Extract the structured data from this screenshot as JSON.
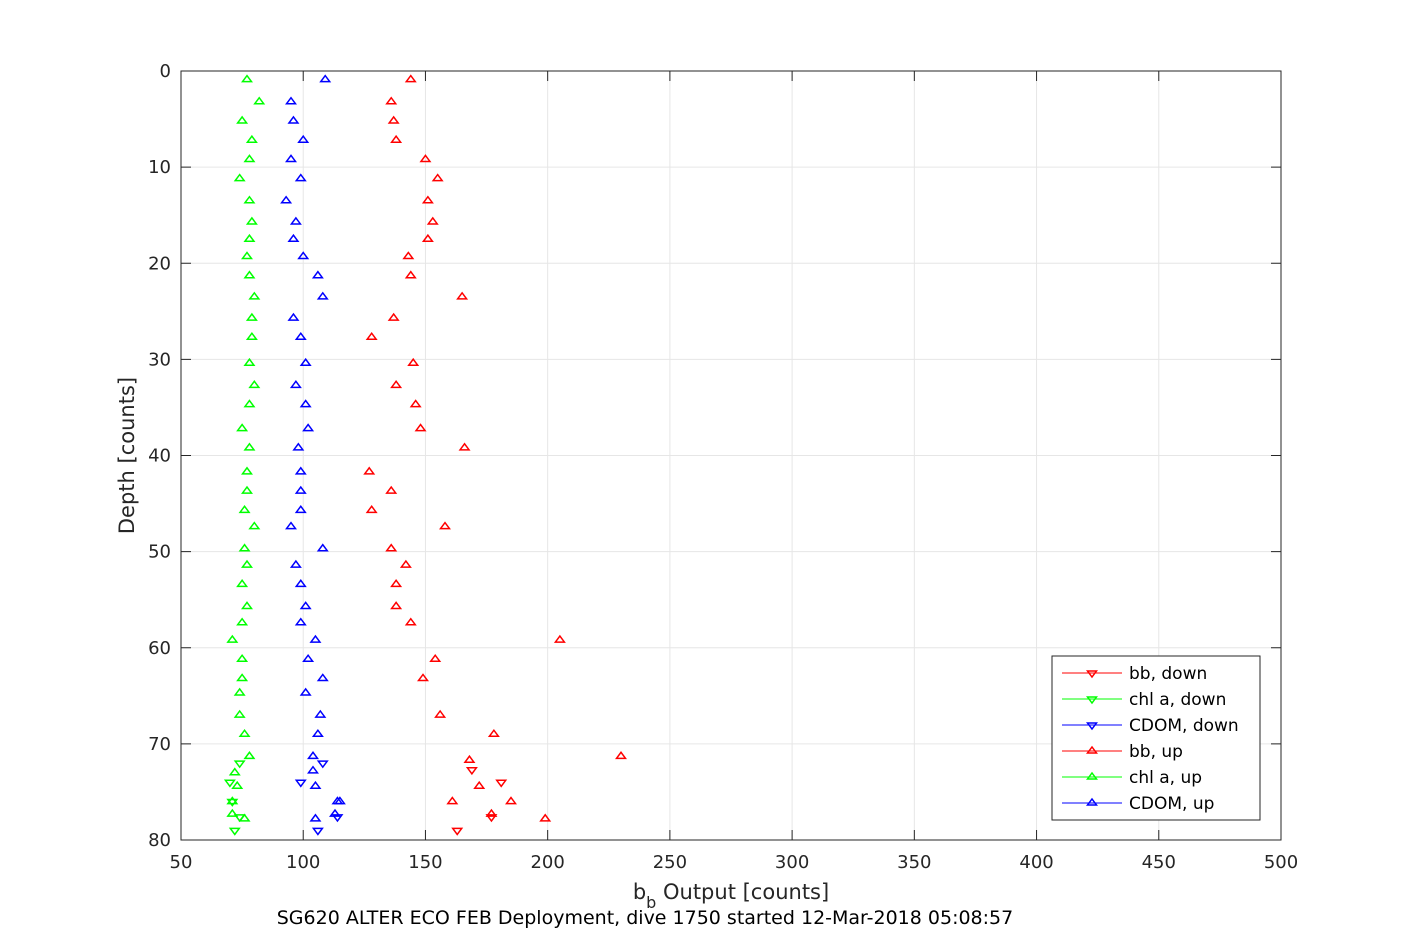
{
  "chart_data": {
    "type": "scatter",
    "caption": "SG620 ALTER ECO FEB Deployment, dive 1750 started 12-Mar-2018 05:08:57",
    "xlabel_main": "b",
    "xlabel_sub": "b",
    "xlabel_rest": " Output [counts]",
    "ylabel": "Depth [counts]",
    "xlim": [
      50,
      500
    ],
    "ylim": [
      0,
      80
    ],
    "y_reversed": true,
    "xticks": [
      "50",
      "100",
      "150",
      "200",
      "250",
      "300",
      "350",
      "400",
      "450",
      "500"
    ],
    "yticks": [
      "0",
      "10",
      "20",
      "30",
      "40",
      "50",
      "60",
      "70",
      "80"
    ],
    "grid": true,
    "legend_position": "bottom-right",
    "series": [
      {
        "name": "bb, down",
        "color": "#ff0000",
        "marker": "triangle-down",
        "points": [
          [
            163,
            79.0
          ],
          [
            177,
            77.6
          ],
          [
            169,
            72.7
          ],
          [
            181,
            74.0
          ]
        ]
      },
      {
        "name": "chl a, down",
        "color": "#00ff00",
        "marker": "triangle-down",
        "points": [
          [
            72,
            79.0
          ],
          [
            74,
            77.6
          ],
          [
            74,
            72.0
          ],
          [
            70,
            74.0
          ],
          [
            71,
            76.0
          ]
        ]
      },
      {
        "name": "CDOM, down",
        "color": "#0000ff",
        "marker": "triangle-down",
        "points": [
          [
            106,
            79.0
          ],
          [
            114,
            77.6
          ],
          [
            108,
            72.0
          ],
          [
            99,
            74.0
          ]
        ]
      },
      {
        "name": "bb, up",
        "color": "#ff0000",
        "marker": "triangle-up",
        "points": [
          [
            144,
            0.9
          ],
          [
            136,
            3.2
          ],
          [
            137,
            5.2
          ],
          [
            138,
            7.2
          ],
          [
            150,
            9.2
          ],
          [
            155,
            11.2
          ],
          [
            151,
            13.5
          ],
          [
            153,
            15.7
          ],
          [
            151,
            17.5
          ],
          [
            143,
            19.3
          ],
          [
            144,
            21.3
          ],
          [
            165,
            23.5
          ],
          [
            137,
            25.7
          ],
          [
            128,
            27.7
          ],
          [
            145,
            30.4
          ],
          [
            138,
            32.7
          ],
          [
            146,
            34.7
          ],
          [
            148,
            37.2
          ],
          [
            166,
            39.2
          ],
          [
            127,
            41.7
          ],
          [
            136,
            43.7
          ],
          [
            128,
            45.7
          ],
          [
            158,
            47.4
          ],
          [
            136,
            49.7
          ],
          [
            142,
            51.4
          ],
          [
            138,
            53.4
          ],
          [
            138,
            55.7
          ],
          [
            144,
            57.4
          ],
          [
            205,
            59.2
          ],
          [
            154,
            61.2
          ],
          [
            149,
            63.2
          ],
          [
            156,
            67.0
          ],
          [
            178,
            69.0
          ],
          [
            230,
            71.3
          ],
          [
            168,
            71.7
          ],
          [
            172,
            74.4
          ],
          [
            185,
            76.0
          ],
          [
            161,
            76.0
          ],
          [
            177,
            77.3
          ],
          [
            199,
            77.8
          ]
        ]
      },
      {
        "name": "chl a, up",
        "color": "#00ff00",
        "marker": "triangle-up",
        "points": [
          [
            77,
            0.9
          ],
          [
            82,
            3.2
          ],
          [
            75,
            5.2
          ],
          [
            79,
            7.2
          ],
          [
            78,
            9.2
          ],
          [
            74,
            11.2
          ],
          [
            78,
            13.5
          ],
          [
            79,
            15.7
          ],
          [
            78,
            17.5
          ],
          [
            77,
            19.3
          ],
          [
            78,
            21.3
          ],
          [
            80,
            23.5
          ],
          [
            79,
            25.7
          ],
          [
            79,
            27.7
          ],
          [
            78,
            30.4
          ],
          [
            80,
            32.7
          ],
          [
            78,
            34.7
          ],
          [
            75,
            37.2
          ],
          [
            78,
            39.2
          ],
          [
            77,
            41.7
          ],
          [
            77,
            43.7
          ],
          [
            76,
            45.7
          ],
          [
            80,
            47.4
          ],
          [
            76,
            49.7
          ],
          [
            77,
            51.4
          ],
          [
            75,
            53.4
          ],
          [
            77,
            55.7
          ],
          [
            75,
            57.4
          ],
          [
            71,
            59.2
          ],
          [
            75,
            61.2
          ],
          [
            75,
            63.2
          ],
          [
            74,
            64.7
          ],
          [
            74,
            67.0
          ],
          [
            76,
            69.0
          ],
          [
            78,
            71.3
          ],
          [
            72,
            73.0
          ],
          [
            73,
            74.4
          ],
          [
            71,
            76.0
          ],
          [
            71,
            77.3
          ],
          [
            76,
            77.8
          ]
        ]
      },
      {
        "name": "CDOM, up",
        "color": "#0000ff",
        "marker": "triangle-up",
        "points": [
          [
            109,
            0.9
          ],
          [
            95,
            3.2
          ],
          [
            96,
            5.2
          ],
          [
            100,
            7.2
          ],
          [
            95,
            9.2
          ],
          [
            99,
            11.2
          ],
          [
            93,
            13.5
          ],
          [
            97,
            15.7
          ],
          [
            96,
            17.5
          ],
          [
            100,
            19.3
          ],
          [
            106,
            21.3
          ],
          [
            108,
            23.5
          ],
          [
            96,
            25.7
          ],
          [
            99,
            27.7
          ],
          [
            101,
            30.4
          ],
          [
            97,
            32.7
          ],
          [
            101,
            34.7
          ],
          [
            102,
            37.2
          ],
          [
            98,
            39.2
          ],
          [
            99,
            41.7
          ],
          [
            99,
            43.7
          ],
          [
            99,
            45.7
          ],
          [
            95,
            47.4
          ],
          [
            108,
            49.7
          ],
          [
            97,
            51.4
          ],
          [
            99,
            53.4
          ],
          [
            101,
            55.7
          ],
          [
            99,
            57.4
          ],
          [
            105,
            59.2
          ],
          [
            102,
            61.2
          ],
          [
            108,
            63.2
          ],
          [
            101,
            64.7
          ],
          [
            107,
            67.0
          ],
          [
            106,
            69.0
          ],
          [
            104,
            71.3
          ],
          [
            104,
            72.8
          ],
          [
            105,
            74.4
          ],
          [
            115,
            76.0
          ],
          [
            113,
            77.3
          ],
          [
            114,
            76.0
          ],
          [
            105,
            77.8
          ]
        ]
      }
    ]
  }
}
